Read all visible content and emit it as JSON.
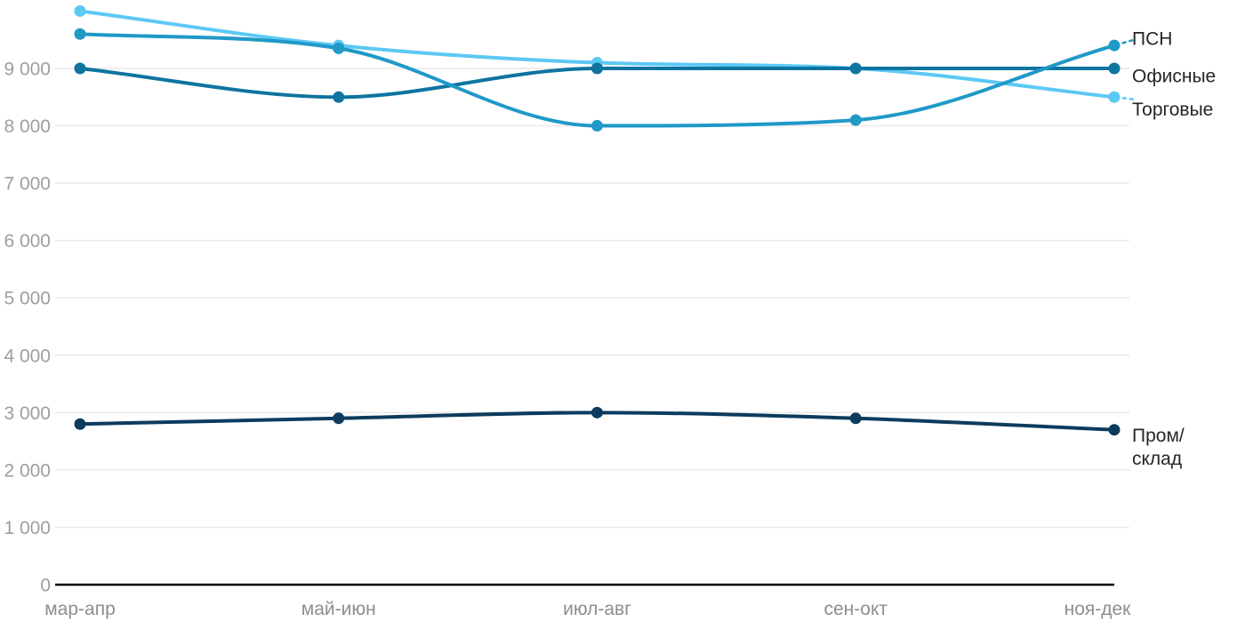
{
  "chart_data": {
    "type": "line",
    "title": "",
    "xlabel": "",
    "ylabel": "",
    "categories": [
      "мар-апр",
      "май-июн",
      "июл-авг",
      "сен-окт",
      "ноя-дек"
    ],
    "series": [
      {
        "id": "torgovye",
        "name": "Торговые",
        "values": [
          10000,
          9400,
          9100,
          9000,
          8500
        ],
        "color": "#5bc8f5",
        "label_lines": [
          "Торговые"
        ],
        "label_dy": 13,
        "leader": true
      },
      {
        "id": "ofisnye",
        "name": "Офисные",
        "values": [
          9000,
          8500,
          9000,
          9000,
          9000
        ],
        "color": "#0e74a0",
        "label_lines": [
          "Офисные"
        ],
        "label_dy": 8,
        "leader": false
      },
      {
        "id": "psn",
        "name": "ПСН",
        "values": [
          9600,
          9350,
          8000,
          8100,
          9400
        ],
        "color": "#2099c7",
        "label_lines": [
          "ПСН"
        ],
        "label_dy": -8,
        "leader": true
      },
      {
        "id": "prom-sklad",
        "name": "Пром/склад",
        "values": [
          2800,
          2900,
          3000,
          2900,
          2700
        ],
        "color": "#0d3b5e",
        "label_lines": [
          "Пром/",
          "склад"
        ],
        "label_dy": 6,
        "leader": false
      }
    ],
    "y_ticks": [
      {
        "value": 0,
        "label": "0"
      },
      {
        "value": 1000,
        "label": "1 000"
      },
      {
        "value": 2000,
        "label": "2 000"
      },
      {
        "value": 3000,
        "label": "3 000"
      },
      {
        "value": 4000,
        "label": "4 000"
      },
      {
        "value": 5000,
        "label": "5 000"
      },
      {
        "value": 6000,
        "label": "6 000"
      },
      {
        "value": 7000,
        "label": "7 000"
      },
      {
        "value": 8000,
        "label": "8 000"
      },
      {
        "value": 9000,
        "label": "9 000"
      }
    ],
    "ylim": [
      0,
      10400
    ],
    "grid": "horizontal",
    "legend_position": "labels-at-line-ends",
    "line_style": "smooth-monotone",
    "colors": {
      "grid": "#e9e9e9",
      "axis": "#000000",
      "y_tick_label": "#9e9e9e",
      "x_tick_label": "#8e8e8e",
      "series_label": "#262626",
      "background": "#ffffff"
    }
  }
}
